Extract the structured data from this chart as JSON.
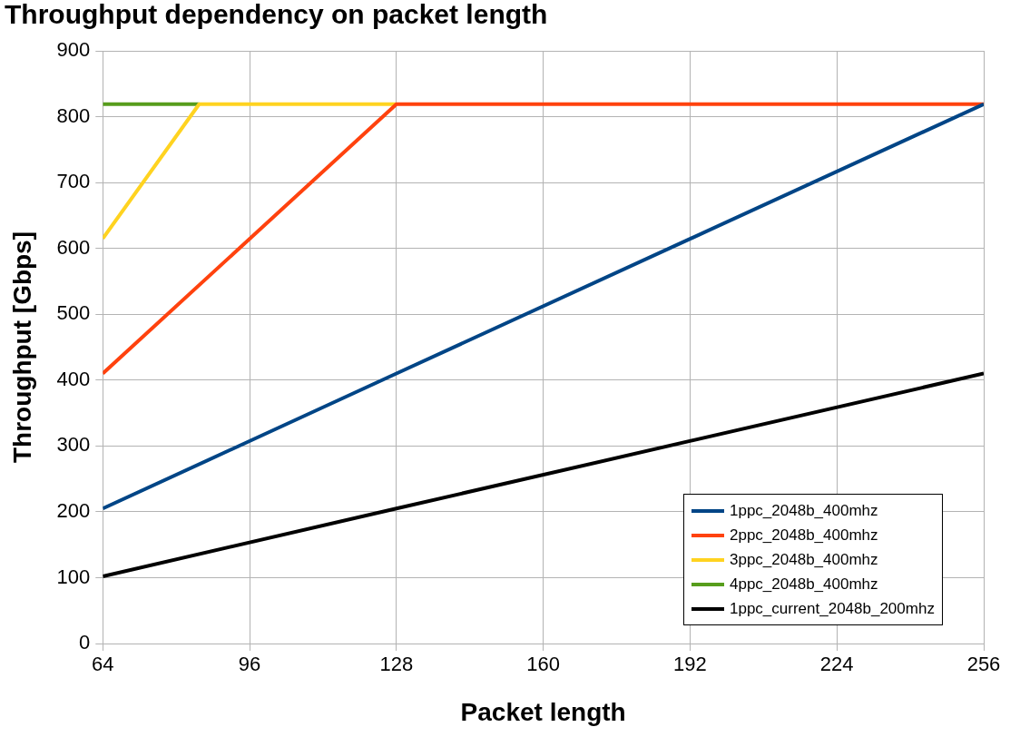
{
  "chart_data": {
    "type": "line",
    "title": "Throughput dependency on packet length",
    "xlabel": "Packet length",
    "ylabel": "Throughput [Gbps]",
    "xlim": [
      64,
      256
    ],
    "xticks": [
      64,
      96,
      128,
      160,
      192,
      224,
      256
    ],
    "ylim": [
      0,
      900
    ],
    "yticks": [
      0,
      100,
      200,
      300,
      400,
      500,
      600,
      700,
      800,
      900
    ],
    "grid": true,
    "legend": "bottom right",
    "marker": "none",
    "line_style": "solid",
    "series": [
      {
        "name": "1ppc_2048b_400mhz",
        "color": "#004586",
        "x": [
          64,
          128,
          256
        ],
        "values": [
          205,
          410,
          819
        ]
      },
      {
        "name": "2ppc_2048b_400mhz",
        "color": "#ff420e",
        "x": [
          64,
          128,
          256
        ],
        "values": [
          410,
          819,
          819
        ]
      },
      {
        "name": "3ppc_2048b_400mhz",
        "color": "#ffd320",
        "x": [
          64,
          85,
          128
        ],
        "values": [
          615,
          819,
          819
        ]
      },
      {
        "name": "4ppc_2048b_400mhz",
        "color": "#579d1c",
        "x": [
          64,
          85
        ],
        "values": [
          819,
          819
        ]
      },
      {
        "name": "1ppc_current_2048b_200mhz",
        "color": "#000000",
        "x": [
          64,
          128,
          256
        ],
        "values": [
          102,
          205,
          410
        ]
      }
    ]
  }
}
